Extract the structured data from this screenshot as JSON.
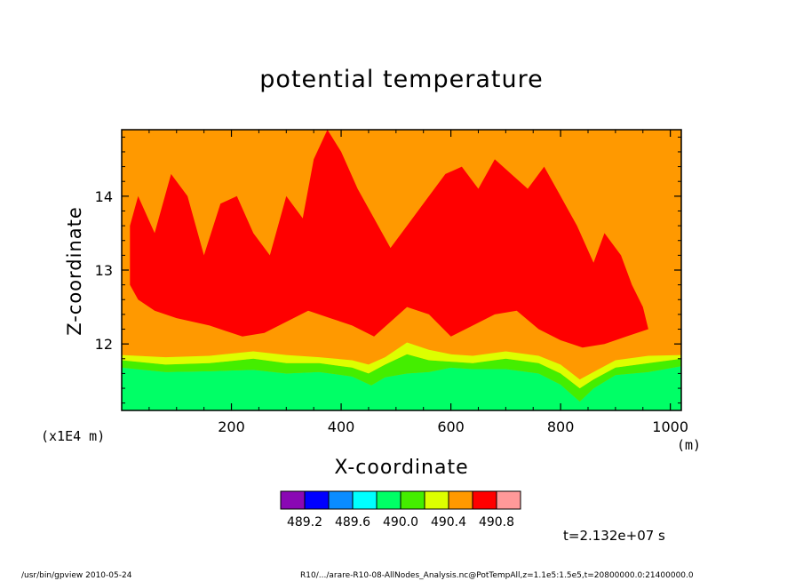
{
  "chart_data": {
    "type": "heatmap",
    "title": "potential temperature",
    "xlabel": "X-coordinate",
    "ylabel": "Z-coordinate",
    "x_unit": "(m)",
    "y_scale_note": "(x1E4 m)",
    "xlim": [
      0,
      1020
    ],
    "ylim": [
      11.1,
      14.9
    ],
    "x_ticks": [
      200,
      400,
      600,
      800,
      1000
    ],
    "y_ticks": [
      12,
      13,
      14
    ],
    "time_label": "t=2.132e+07 s",
    "legend": {
      "colors": [
        "#8a08b4",
        "#0000ff",
        "#0a8cff",
        "#00ffff",
        "#00ff66",
        "#44ee00",
        "#ddff00",
        "#ff9900",
        "#ff0000",
        "#ff9999"
      ],
      "tick_labels": [
        "489.2",
        "489.6",
        "490.0",
        "490.4",
        "490.8"
      ]
    },
    "background_color": "#ff9900",
    "bands": [
      {
        "level": "490.0-490.2",
        "color": "#00ff66",
        "lower": [
          [
            0,
            11.1
          ],
          [
            1020,
            11.1
          ]
        ],
        "upper": [
          [
            0,
            11.68
          ],
          [
            80,
            11.62
          ],
          [
            160,
            11.63
          ],
          [
            240,
            11.65
          ],
          [
            300,
            11.6
          ],
          [
            360,
            11.62
          ],
          [
            420,
            11.56
          ],
          [
            455,
            11.44
          ],
          [
            480,
            11.55
          ],
          [
            520,
            11.6
          ],
          [
            560,
            11.62
          ],
          [
            600,
            11.68
          ],
          [
            640,
            11.66
          ],
          [
            700,
            11.66
          ],
          [
            760,
            11.6
          ],
          [
            800,
            11.45
          ],
          [
            835,
            11.22
          ],
          [
            860,
            11.4
          ],
          [
            900,
            11.58
          ],
          [
            960,
            11.62
          ],
          [
            1020,
            11.7
          ]
        ]
      },
      {
        "level": "490.2-490.4",
        "color": "#44ee00",
        "lower": [
          [
            0,
            11.68
          ],
          [
            80,
            11.62
          ],
          [
            160,
            11.63
          ],
          [
            240,
            11.65
          ],
          [
            300,
            11.6
          ],
          [
            360,
            11.62
          ],
          [
            420,
            11.56
          ],
          [
            455,
            11.44
          ],
          [
            480,
            11.55
          ],
          [
            520,
            11.6
          ],
          [
            560,
            11.62
          ],
          [
            600,
            11.68
          ],
          [
            640,
            11.66
          ],
          [
            700,
            11.66
          ],
          [
            760,
            11.6
          ],
          [
            800,
            11.45
          ],
          [
            835,
            11.22
          ],
          [
            860,
            11.4
          ],
          [
            900,
            11.58
          ],
          [
            960,
            11.62
          ],
          [
            1020,
            11.7
          ]
        ],
        "upper": [
          [
            0,
            11.78
          ],
          [
            80,
            11.72
          ],
          [
            160,
            11.74
          ],
          [
            240,
            11.8
          ],
          [
            300,
            11.74
          ],
          [
            360,
            11.74
          ],
          [
            420,
            11.68
          ],
          [
            450,
            11.6
          ],
          [
            480,
            11.72
          ],
          [
            520,
            11.86
          ],
          [
            560,
            11.78
          ],
          [
            600,
            11.76
          ],
          [
            640,
            11.74
          ],
          [
            700,
            11.8
          ],
          [
            760,
            11.74
          ],
          [
            800,
            11.6
          ],
          [
            835,
            11.4
          ],
          [
            860,
            11.52
          ],
          [
            900,
            11.68
          ],
          [
            960,
            11.74
          ],
          [
            1020,
            11.8
          ]
        ]
      },
      {
        "level": "490.4-490.6",
        "color": "#ddff00",
        "lower": [
          [
            0,
            11.78
          ],
          [
            80,
            11.72
          ],
          [
            160,
            11.74
          ],
          [
            240,
            11.8
          ],
          [
            300,
            11.74
          ],
          [
            360,
            11.74
          ],
          [
            420,
            11.68
          ],
          [
            450,
            11.6
          ],
          [
            480,
            11.72
          ],
          [
            520,
            11.86
          ],
          [
            560,
            11.78
          ],
          [
            600,
            11.76
          ],
          [
            640,
            11.74
          ],
          [
            700,
            11.8
          ],
          [
            760,
            11.74
          ],
          [
            800,
            11.6
          ],
          [
            835,
            11.4
          ],
          [
            860,
            11.52
          ],
          [
            900,
            11.68
          ],
          [
            960,
            11.74
          ],
          [
            1020,
            11.8
          ]
        ],
        "upper": [
          [
            0,
            11.85
          ],
          [
            80,
            11.82
          ],
          [
            160,
            11.84
          ],
          [
            240,
            11.9
          ],
          [
            300,
            11.85
          ],
          [
            360,
            11.82
          ],
          [
            420,
            11.78
          ],
          [
            450,
            11.72
          ],
          [
            480,
            11.82
          ],
          [
            520,
            12.02
          ],
          [
            560,
            11.92
          ],
          [
            600,
            11.86
          ],
          [
            640,
            11.84
          ],
          [
            700,
            11.9
          ],
          [
            760,
            11.84
          ],
          [
            800,
            11.72
          ],
          [
            835,
            11.52
          ],
          [
            860,
            11.62
          ],
          [
            900,
            11.78
          ],
          [
            960,
            11.84
          ],
          [
            1020,
            11.85
          ]
        ]
      },
      {
        "level": "490.8-491.0",
        "color": "#ff0000",
        "lower": [
          [
            15,
            12.8
          ],
          [
            30,
            12.6
          ],
          [
            60,
            12.45
          ],
          [
            100,
            12.35
          ],
          [
            160,
            12.25
          ],
          [
            220,
            12.1
          ],
          [
            260,
            12.15
          ],
          [
            300,
            12.3
          ],
          [
            340,
            12.45
          ],
          [
            380,
            12.35
          ],
          [
            420,
            12.25
          ],
          [
            460,
            12.1
          ],
          [
            490,
            12.3
          ],
          [
            520,
            12.5
          ],
          [
            560,
            12.4
          ],
          [
            600,
            12.1
          ],
          [
            640,
            12.25
          ],
          [
            680,
            12.4
          ],
          [
            720,
            12.45
          ],
          [
            760,
            12.2
          ],
          [
            800,
            12.05
          ],
          [
            840,
            11.95
          ],
          [
            880,
            12.0
          ],
          [
            920,
            12.1
          ],
          [
            960,
            12.2
          ]
        ],
        "upper": [
          [
            15,
            13.6
          ],
          [
            30,
            14.0
          ],
          [
            60,
            13.5
          ],
          [
            90,
            14.3
          ],
          [
            120,
            14.0
          ],
          [
            150,
            13.2
          ],
          [
            180,
            13.9
          ],
          [
            210,
            14.0
          ],
          [
            240,
            13.5
          ],
          [
            270,
            13.2
          ],
          [
            300,
            14.0
          ],
          [
            330,
            13.7
          ],
          [
            350,
            14.5
          ],
          [
            375,
            14.9
          ],
          [
            400,
            14.6
          ],
          [
            430,
            14.1
          ],
          [
            460,
            13.7
          ],
          [
            490,
            13.3
          ],
          [
            520,
            13.6
          ],
          [
            560,
            14.0
          ],
          [
            590,
            14.3
          ],
          [
            620,
            14.4
          ],
          [
            650,
            14.1
          ],
          [
            680,
            14.5
          ],
          [
            710,
            14.3
          ],
          [
            740,
            14.1
          ],
          [
            770,
            14.4
          ],
          [
            800,
            14.0
          ],
          [
            830,
            13.6
          ],
          [
            860,
            13.1
          ],
          [
            880,
            13.5
          ],
          [
            910,
            13.2
          ],
          [
            930,
            12.8
          ],
          [
            950,
            12.5
          ],
          [
            960,
            12.2
          ]
        ]
      }
    ]
  },
  "footer": {
    "left": "/usr/bin/gpview   2010-05-24",
    "right": "R10/.../arare-R10-08-AllNodes_Analysis.nc@PotTempAll,z=1.1e5:1.5e5,t=20800000.0:21400000.0"
  }
}
